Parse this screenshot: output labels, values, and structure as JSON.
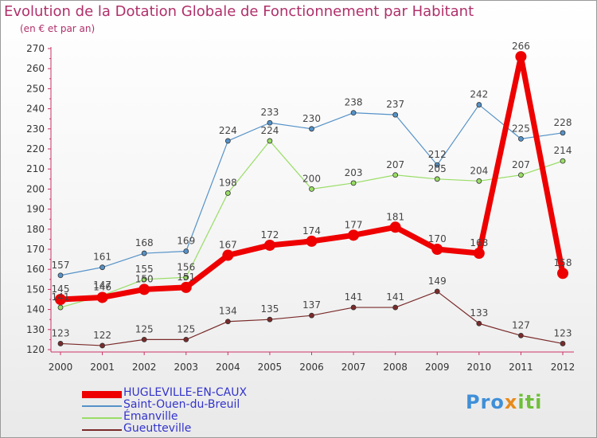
{
  "title": "Evolution de la Dotation Globale de Fonctionnement par Habitant",
  "subtitle": "(en € et par an)",
  "brand": {
    "parts": [
      "Pro",
      "x",
      "iti"
    ],
    "colors": [
      "#3f8fd8",
      "#e88a1a",
      "#6fbf3a"
    ]
  },
  "chart_data": {
    "type": "line",
    "x": [
      "2000",
      "2001",
      "2002",
      "2003",
      "2004",
      "2005",
      "2006",
      "2007",
      "2008",
      "2009",
      "2010",
      "2011",
      "2012"
    ],
    "ylim": [
      120,
      270
    ],
    "yticks": [
      120,
      130,
      140,
      150,
      160,
      170,
      180,
      190,
      200,
      210,
      220,
      230,
      240,
      250,
      260,
      270
    ],
    "grid": false,
    "legend_position": "bottom-left",
    "series": [
      {
        "name": "HUGLEVILLE-EN-CAUX",
        "color": "#ee0000",
        "width": 7,
        "marker": 7,
        "values": [
          145,
          146,
          150,
          151,
          167,
          172,
          174,
          177,
          181,
          170,
          168,
          266,
          158
        ],
        "labels": [
          "145",
          "146",
          "150",
          "151",
          "167",
          "172",
          "174",
          "177",
          "181",
          "170",
          "168",
          "266",
          "158"
        ]
      },
      {
        "name": "Saint-Ouen-du-Breuil",
        "color": "#5592c8",
        "width": 1.2,
        "marker": 3,
        "values": [
          157,
          161,
          168,
          169,
          224,
          233,
          230,
          238,
          237,
          212,
          242,
          225,
          228
        ],
        "labels": [
          "157",
          "161",
          "168",
          "169",
          "224",
          "233",
          "230",
          "238",
          "237",
          "212",
          "242",
          "225",
          "228"
        ]
      },
      {
        "name": "Émanville",
        "color": "#99dd66",
        "width": 1.2,
        "marker": 3,
        "values": [
          141,
          147,
          155,
          156,
          198,
          224,
          200,
          203,
          207,
          205,
          204,
          207,
          214
        ],
        "labels": [
          "141",
          "147",
          "155",
          "156",
          "198",
          "224",
          "200",
          "203",
          "207",
          "205",
          "204",
          "207",
          "214"
        ]
      },
      {
        "name": "Gueutteville",
        "color": "#7a2a2a",
        "width": 1.2,
        "marker": 3,
        "values": [
          123,
          122,
          125,
          125,
          134,
          135,
          137,
          141,
          141,
          149,
          133,
          127,
          123
        ],
        "labels": [
          "123",
          "122",
          "125",
          "125",
          "134",
          "135",
          "137",
          "141",
          "141",
          "149",
          "133",
          "127",
          "123"
        ]
      }
    ]
  }
}
